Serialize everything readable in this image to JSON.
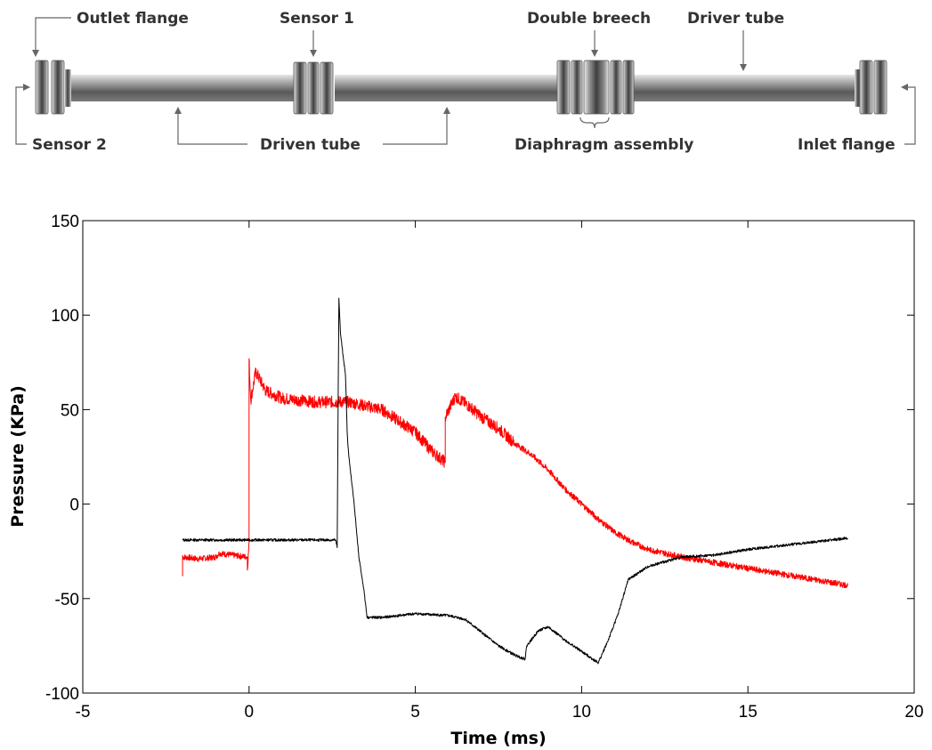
{
  "diagram": {
    "labels": {
      "outlet_flange": "Outlet flange",
      "sensor1": "Sensor 1",
      "double_breech": "Double breech",
      "driver_tube": "Driver tube",
      "sensor2": "Sensor 2",
      "driven_tube": "Driven tube",
      "diaphragm_assembly": "Diaphragm assembly",
      "inlet_flange": "Inlet flange"
    },
    "colors": {
      "tube_dark": "#5c5c5c",
      "tube_light": "#c8c8c8",
      "label_text": "#333333"
    }
  },
  "chart_data": {
    "type": "line",
    "xlabel": "Time (ms)",
    "ylabel": "Pressure (KPa)",
    "xlim": [
      -5,
      20
    ],
    "ylim": [
      -100,
      150
    ],
    "xticks": [
      -5,
      0,
      5,
      10,
      15,
      20
    ],
    "yticks": [
      -100,
      -50,
      0,
      50,
      100,
      150
    ],
    "grid": false,
    "series": [
      {
        "color": "#ff0000",
        "points": [
          [
            -2,
            -27
          ],
          [
            -2,
            -38
          ],
          [
            -2,
            -28
          ],
          [
            -1.5,
            -29
          ],
          [
            -1,
            -28
          ],
          [
            -0.9,
            -26
          ],
          [
            -0.5,
            -27
          ],
          [
            -0.05,
            -28
          ],
          [
            -0.05,
            -35
          ],
          [
            0,
            -20
          ],
          [
            0,
            77
          ],
          [
            0.05,
            55
          ],
          [
            0.2,
            70
          ],
          [
            0.5,
            60
          ],
          [
            1,
            56
          ],
          [
            2,
            54
          ],
          [
            3,
            54
          ],
          [
            3.5,
            52
          ],
          [
            4,
            50
          ],
          [
            4.5,
            44
          ],
          [
            5,
            38
          ],
          [
            5.5,
            28
          ],
          [
            5.9,
            22
          ],
          [
            5.9,
            46
          ],
          [
            6.2,
            57
          ],
          [
            6.6,
            52
          ],
          [
            7,
            46
          ],
          [
            7.5,
            40
          ],
          [
            8,
            32
          ],
          [
            8.5,
            26
          ],
          [
            9,
            18
          ],
          [
            9.5,
            8
          ],
          [
            10,
            0
          ],
          [
            10.5,
            -8
          ],
          [
            11,
            -15
          ],
          [
            11.5,
            -20
          ],
          [
            12,
            -24
          ],
          [
            13,
            -28
          ],
          [
            14,
            -31
          ],
          [
            15,
            -34
          ],
          [
            16,
            -37
          ],
          [
            17,
            -40
          ],
          [
            18,
            -43
          ]
        ]
      },
      {
        "color": "#000000",
        "points": [
          [
            -2,
            -19
          ],
          [
            0,
            -19
          ],
          [
            2.6,
            -19
          ],
          [
            2.65,
            -23
          ],
          [
            2.7,
            109
          ],
          [
            2.75,
            90
          ],
          [
            2.9,
            68
          ],
          [
            2.95,
            38
          ],
          [
            3,
            25
          ],
          [
            3.15,
            2
          ],
          [
            3.3,
            -28
          ],
          [
            3.45,
            -45
          ],
          [
            3.55,
            -60
          ],
          [
            4,
            -60
          ],
          [
            5,
            -58
          ],
          [
            6,
            -59
          ],
          [
            6.5,
            -61
          ],
          [
            7,
            -68
          ],
          [
            7.5,
            -75
          ],
          [
            8,
            -80
          ],
          [
            8.3,
            -82
          ],
          [
            8.35,
            -75
          ],
          [
            8.7,
            -67
          ],
          [
            9,
            -65
          ],
          [
            9.5,
            -72
          ],
          [
            10,
            -78
          ],
          [
            10.5,
            -84
          ],
          [
            10.8,
            -72
          ],
          [
            11.1,
            -58
          ],
          [
            11.4,
            -40
          ],
          [
            12,
            -33
          ],
          [
            13,
            -28
          ],
          [
            14,
            -27
          ],
          [
            15,
            -24
          ],
          [
            16,
            -22
          ],
          [
            17,
            -20
          ],
          [
            18,
            -18
          ]
        ]
      }
    ]
  }
}
